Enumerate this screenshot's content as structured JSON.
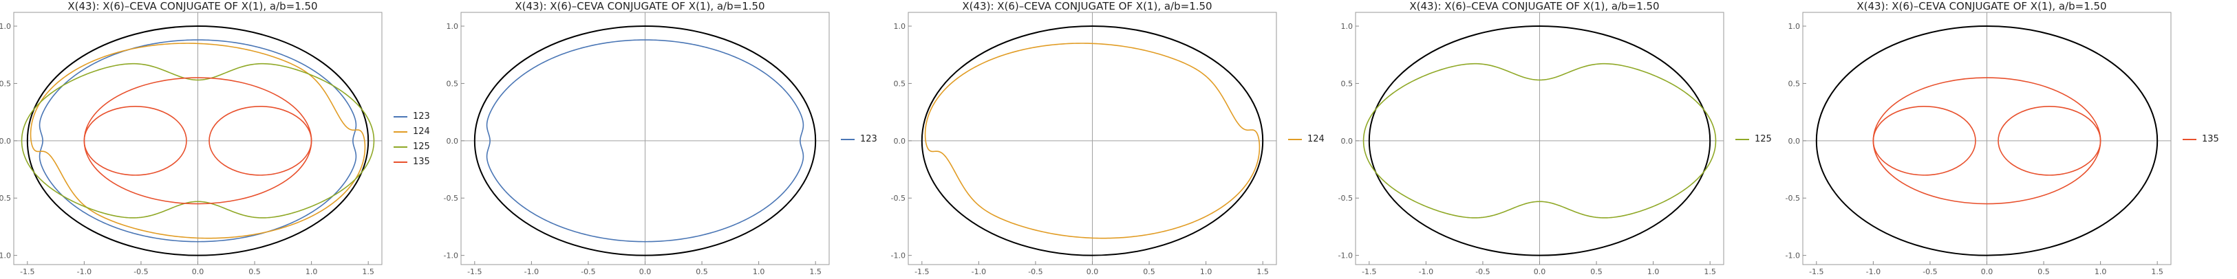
{
  "chart_data": [
    {
      "type": "line",
      "title": "X(43): X(6)–CEVA CONJUGATE OF X(1), a/b=1.50",
      "xlim": [
        -1.62,
        1.62
      ],
      "ylim": [
        -1.08,
        1.12
      ],
      "xticks": [
        -1.5,
        -1.0,
        -0.5,
        0.0,
        0.5,
        1.0,
        1.5
      ],
      "xtick_labels": [
        "-1.5",
        "-1.0",
        "-0.5",
        "0.0",
        "0.5",
        "1.0",
        "1.5"
      ],
      "yticks": [
        -1.0,
        -0.5,
        0.0,
        0.5,
        1.0
      ],
      "ytick_labels": [
        "-1.0",
        "-0.5",
        "0.0",
        "0.5",
        "1.0"
      ],
      "ellipse": {
        "a": 1.5,
        "b": 1.0,
        "color": "#000000"
      },
      "legend_position": "right",
      "series": [
        {
          "name": "123",
          "color": "#4a76b5"
        },
        {
          "name": "124",
          "color": "#e19c24"
        },
        {
          "name": "125",
          "color": "#8fa826"
        },
        {
          "name": "135",
          "color": "#e8502c"
        }
      ]
    },
    {
      "type": "line",
      "title": "X(43): X(6)–CEVA CONJUGATE OF X(1), a/b=1.50",
      "xlim": [
        -1.62,
        1.62
      ],
      "ylim": [
        -1.08,
        1.12
      ],
      "xticks": [
        -1.5,
        -1.0,
        -0.5,
        0.0,
        0.5,
        1.0,
        1.5
      ],
      "xtick_labels": [
        "-1.5",
        "-1.0",
        "-0.5",
        "0.0",
        "0.5",
        "1.0",
        "1.5"
      ],
      "yticks": [
        -1.0,
        -0.5,
        0.0,
        0.5,
        1.0
      ],
      "ytick_labels": [
        "-1.0",
        "-0.5",
        "0.0",
        "0.5",
        "1.0"
      ],
      "ellipse": {
        "a": 1.5,
        "b": 1.0,
        "color": "#000000"
      },
      "legend_position": "right",
      "series": [
        {
          "name": "123",
          "color": "#4a76b5"
        }
      ]
    },
    {
      "type": "line",
      "title": "X(43): X(6)–CEVA CONJUGATE OF X(1), a/b=1.50",
      "xlim": [
        -1.62,
        1.62
      ],
      "ylim": [
        -1.08,
        1.12
      ],
      "xticks": [
        -1.5,
        -1.0,
        -0.5,
        0.0,
        0.5,
        1.0,
        1.5
      ],
      "xtick_labels": [
        "-1.5",
        "-1.0",
        "-0.5",
        "0.0",
        "0.5",
        "1.0",
        "1.5"
      ],
      "yticks": [
        -1.0,
        -0.5,
        0.0,
        0.5,
        1.0
      ],
      "ytick_labels": [
        "-1.0",
        "-0.5",
        "0.0",
        "0.5",
        "1.0"
      ],
      "ellipse": {
        "a": 1.5,
        "b": 1.0,
        "color": "#000000"
      },
      "legend_position": "right",
      "series": [
        {
          "name": "124",
          "color": "#e19c24"
        }
      ]
    },
    {
      "type": "line",
      "title": "X(43): X(6)–CEVA CONJUGATE OF X(1), a/b=1.50",
      "xlim": [
        -1.62,
        1.62
      ],
      "ylim": [
        -1.08,
        1.12
      ],
      "xticks": [
        -1.5,
        -1.0,
        -0.5,
        0.0,
        0.5,
        1.0,
        1.5
      ],
      "xtick_labels": [
        "-1.5",
        "-1.0",
        "-0.5",
        "0.0",
        "0.5",
        "1.0",
        "1.5"
      ],
      "yticks": [
        -1.0,
        -0.5,
        0.0,
        0.5,
        1.0
      ],
      "ytick_labels": [
        "-1.0",
        "-0.5",
        "0.0",
        "0.5",
        "1.0"
      ],
      "ellipse": {
        "a": 1.5,
        "b": 1.0,
        "color": "#000000"
      },
      "legend_position": "right",
      "series": [
        {
          "name": "125",
          "color": "#8fa826"
        }
      ]
    },
    {
      "type": "line",
      "title": "X(43): X(6)–CEVA CONJUGATE OF X(1), a/b=1.50",
      "xlim": [
        -1.62,
        1.62
      ],
      "ylim": [
        -1.08,
        1.12
      ],
      "xticks": [
        -1.5,
        -1.0,
        -0.5,
        0.0,
        0.5,
        1.0,
        1.5
      ],
      "xtick_labels": [
        "-1.5",
        "-1.0",
        "-0.5",
        "0.0",
        "0.5",
        "1.0",
        "1.5"
      ],
      "yticks": [
        -1.0,
        -0.5,
        0.0,
        0.5,
        1.0
      ],
      "ytick_labels": [
        "-1.0",
        "-0.5",
        "0.0",
        "0.5",
        "1.0"
      ],
      "ellipse": {
        "a": 1.5,
        "b": 1.0,
        "color": "#000000"
      },
      "legend_position": "right",
      "series": [
        {
          "name": "135",
          "color": "#e8502c"
        }
      ]
    }
  ]
}
